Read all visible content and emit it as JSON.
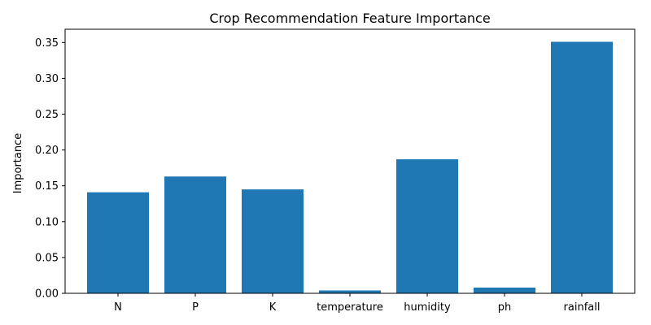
{
  "chart_data": {
    "type": "bar",
    "title": "Crop Recommendation Feature Importance",
    "xlabel": "",
    "ylabel": "Importance",
    "categories": [
      "N",
      "P",
      "K",
      "temperature",
      "humidity",
      "ph",
      "rainfall"
    ],
    "values": [
      0.141,
      0.163,
      0.145,
      0.004,
      0.187,
      0.008,
      0.351
    ],
    "ylim": [
      0,
      0.3685
    ],
    "yticks": [
      "0.00",
      "0.05",
      "0.10",
      "0.15",
      "0.20",
      "0.25",
      "0.30",
      "0.35"
    ],
    "grid": false,
    "bar_color": "#1f77b4"
  }
}
